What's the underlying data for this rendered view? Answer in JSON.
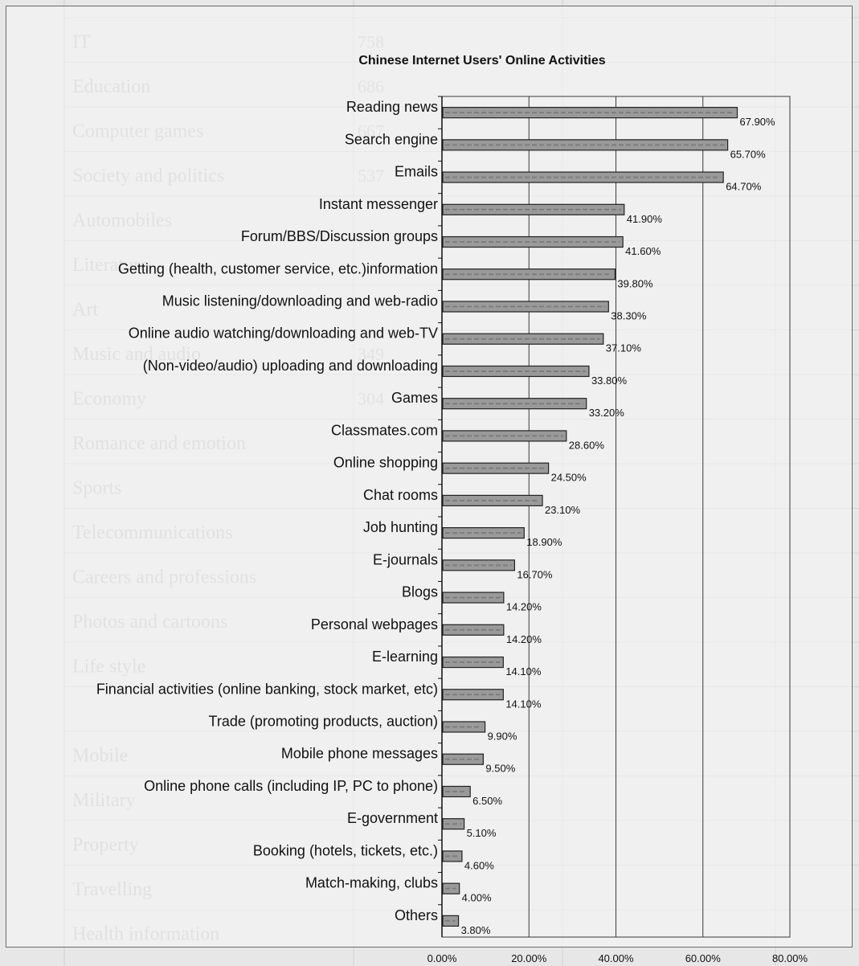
{
  "chart_data": {
    "type": "bar",
    "orientation": "horizontal",
    "title": "Chinese Internet Users' Online Activities",
    "categories": [
      "Reading news",
      "Search engine",
      "Emails",
      "Instant messenger",
      "Forum/BBS/Discussion groups",
      "Getting (health, customer service, etc.)information",
      "Music listening/downloading and web-radio",
      "Online audio watching/downloading and web-TV",
      "(Non-video/audio) uploading and downloading",
      "Games",
      "Classmates.com",
      "Online shopping",
      "Chat rooms",
      "Job hunting",
      "E-journals",
      "Blogs",
      "Personal webpages",
      "E-learning",
      "Financial activities (online banking, stock market, etc)",
      "Trade (promoting products, auction)",
      "Mobile phone messages",
      "Online phone calls (including IP, PC to phone)",
      "E-government",
      "Booking (hotels, tickets, etc.)",
      "Match-making, clubs",
      "Others"
    ],
    "values": [
      67.9,
      65.7,
      64.7,
      41.9,
      41.6,
      39.8,
      38.3,
      37.1,
      33.8,
      33.2,
      28.6,
      24.5,
      23.1,
      18.9,
      16.7,
      14.2,
      14.2,
      14.1,
      14.1,
      9.9,
      9.5,
      6.5,
      5.1,
      4.6,
      4.0,
      3.8
    ],
    "value_labels": [
      "67.90%",
      "65.70%",
      "64.70%",
      "41.90%",
      "41.60%",
      "39.80%",
      "38.30%",
      "37.10%",
      "33.80%",
      "33.20%",
      "28.60%",
      "24.50%",
      "23.10%",
      "18.90%",
      "16.70%",
      "14.20%",
      "14.20%",
      "14.10%",
      "14.10%",
      "9.90%",
      "9.50%",
      "6.50%",
      "5.10%",
      "4.60%",
      "4.00%",
      "3.80%"
    ],
    "xlim": [
      0,
      80
    ],
    "xticks": [
      0,
      20,
      40,
      60,
      80
    ],
    "xtick_labels": [
      "0.00%",
      "20.00%",
      "40.00%",
      "60.00%",
      "80.00%"
    ],
    "grid": "vertical",
    "legend": "none",
    "bar_color": "#9a9a9a",
    "bar_edge_color": "#222222"
  },
  "ghost_table": {
    "rows": [
      {
        "label": "IT",
        "value": "758"
      },
      {
        "label": "Education",
        "value": "686"
      },
      {
        "label": "Computer games",
        "value": "667"
      },
      {
        "label": "Society and politics",
        "value": "537"
      },
      {
        "label": "Automobiles",
        "value": ""
      },
      {
        "label": "Literature",
        "value": ""
      },
      {
        "label": "Art",
        "value": ""
      },
      {
        "label": "Music and audio",
        "value": "349"
      },
      {
        "label": "Economy",
        "value": "304"
      },
      {
        "label": "Romance and emotion",
        "value": ""
      },
      {
        "label": "Sports",
        "value": ""
      },
      {
        "label": "Telecommunications",
        "value": ""
      },
      {
        "label": "Careers and professions",
        "value": ""
      },
      {
        "label": "Photos and cartoons",
        "value": ""
      },
      {
        "label": "Life style",
        "value": ""
      },
      {
        "label": "",
        "value": ""
      },
      {
        "label": "Mobile",
        "value": ""
      },
      {
        "label": "Military",
        "value": ""
      },
      {
        "label": "Property",
        "value": ""
      },
      {
        "label": "Travelling",
        "value": ""
      },
      {
        "label": "Health information",
        "value": ""
      }
    ]
  }
}
